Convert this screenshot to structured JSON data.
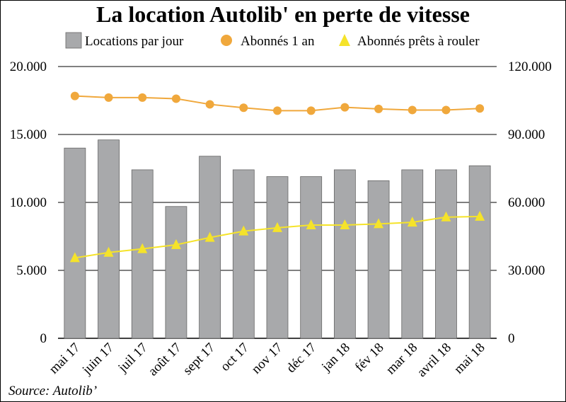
{
  "chart_data": {
    "type": "bar",
    "title": "La location Autolib' en perte de vitesse",
    "categories": [
      "mai 17",
      "juin 17",
      "juil 17",
      "août 17",
      "sept 17",
      "oct 17",
      "nov 17",
      "déc 17",
      "jan 18",
      "fév 18",
      "mar 18",
      "avril 18",
      "mai 18"
    ],
    "series": [
      {
        "name": "Locations par jour",
        "kind": "bar",
        "axis": "left",
        "color": "#a8a9ab",
        "values": [
          14000,
          14600,
          12400,
          9700,
          13400,
          12400,
          11900,
          11900,
          12400,
          11600,
          12400,
          12400,
          12700
        ]
      },
      {
        "name": "Abonnés 1 an",
        "kind": "line",
        "axis": "right",
        "color": "#f0a83c",
        "marker": "circle",
        "values": [
          107000,
          106300,
          106300,
          105800,
          103300,
          101800,
          100500,
          100500,
          102000,
          101300,
          100800,
          100800,
          101500
        ]
      },
      {
        "name": "Abonnés prêts à rouler",
        "kind": "line",
        "axis": "right",
        "color": "#f5e32a",
        "marker": "triangle",
        "values": [
          35500,
          37900,
          39500,
          41300,
          44500,
          47300,
          48800,
          50000,
          50000,
          50500,
          51200,
          53500,
          53800
        ]
      }
    ],
    "y_left": {
      "min": 0,
      "max": 20000,
      "ticks": [
        "0",
        "5.000",
        "10.000",
        "15.000",
        "20.000"
      ],
      "tick_values": [
        0,
        5000,
        10000,
        15000,
        20000
      ]
    },
    "y_right": {
      "min": 0,
      "max": 120000,
      "ticks": [
        "0",
        "30.000",
        "60.000",
        "90.000",
        "120.000"
      ],
      "tick_values": [
        0,
        30000,
        60000,
        90000,
        120000
      ]
    },
    "grid": "horizontal",
    "legend_position": "top"
  },
  "source": "Source: Autolib’"
}
